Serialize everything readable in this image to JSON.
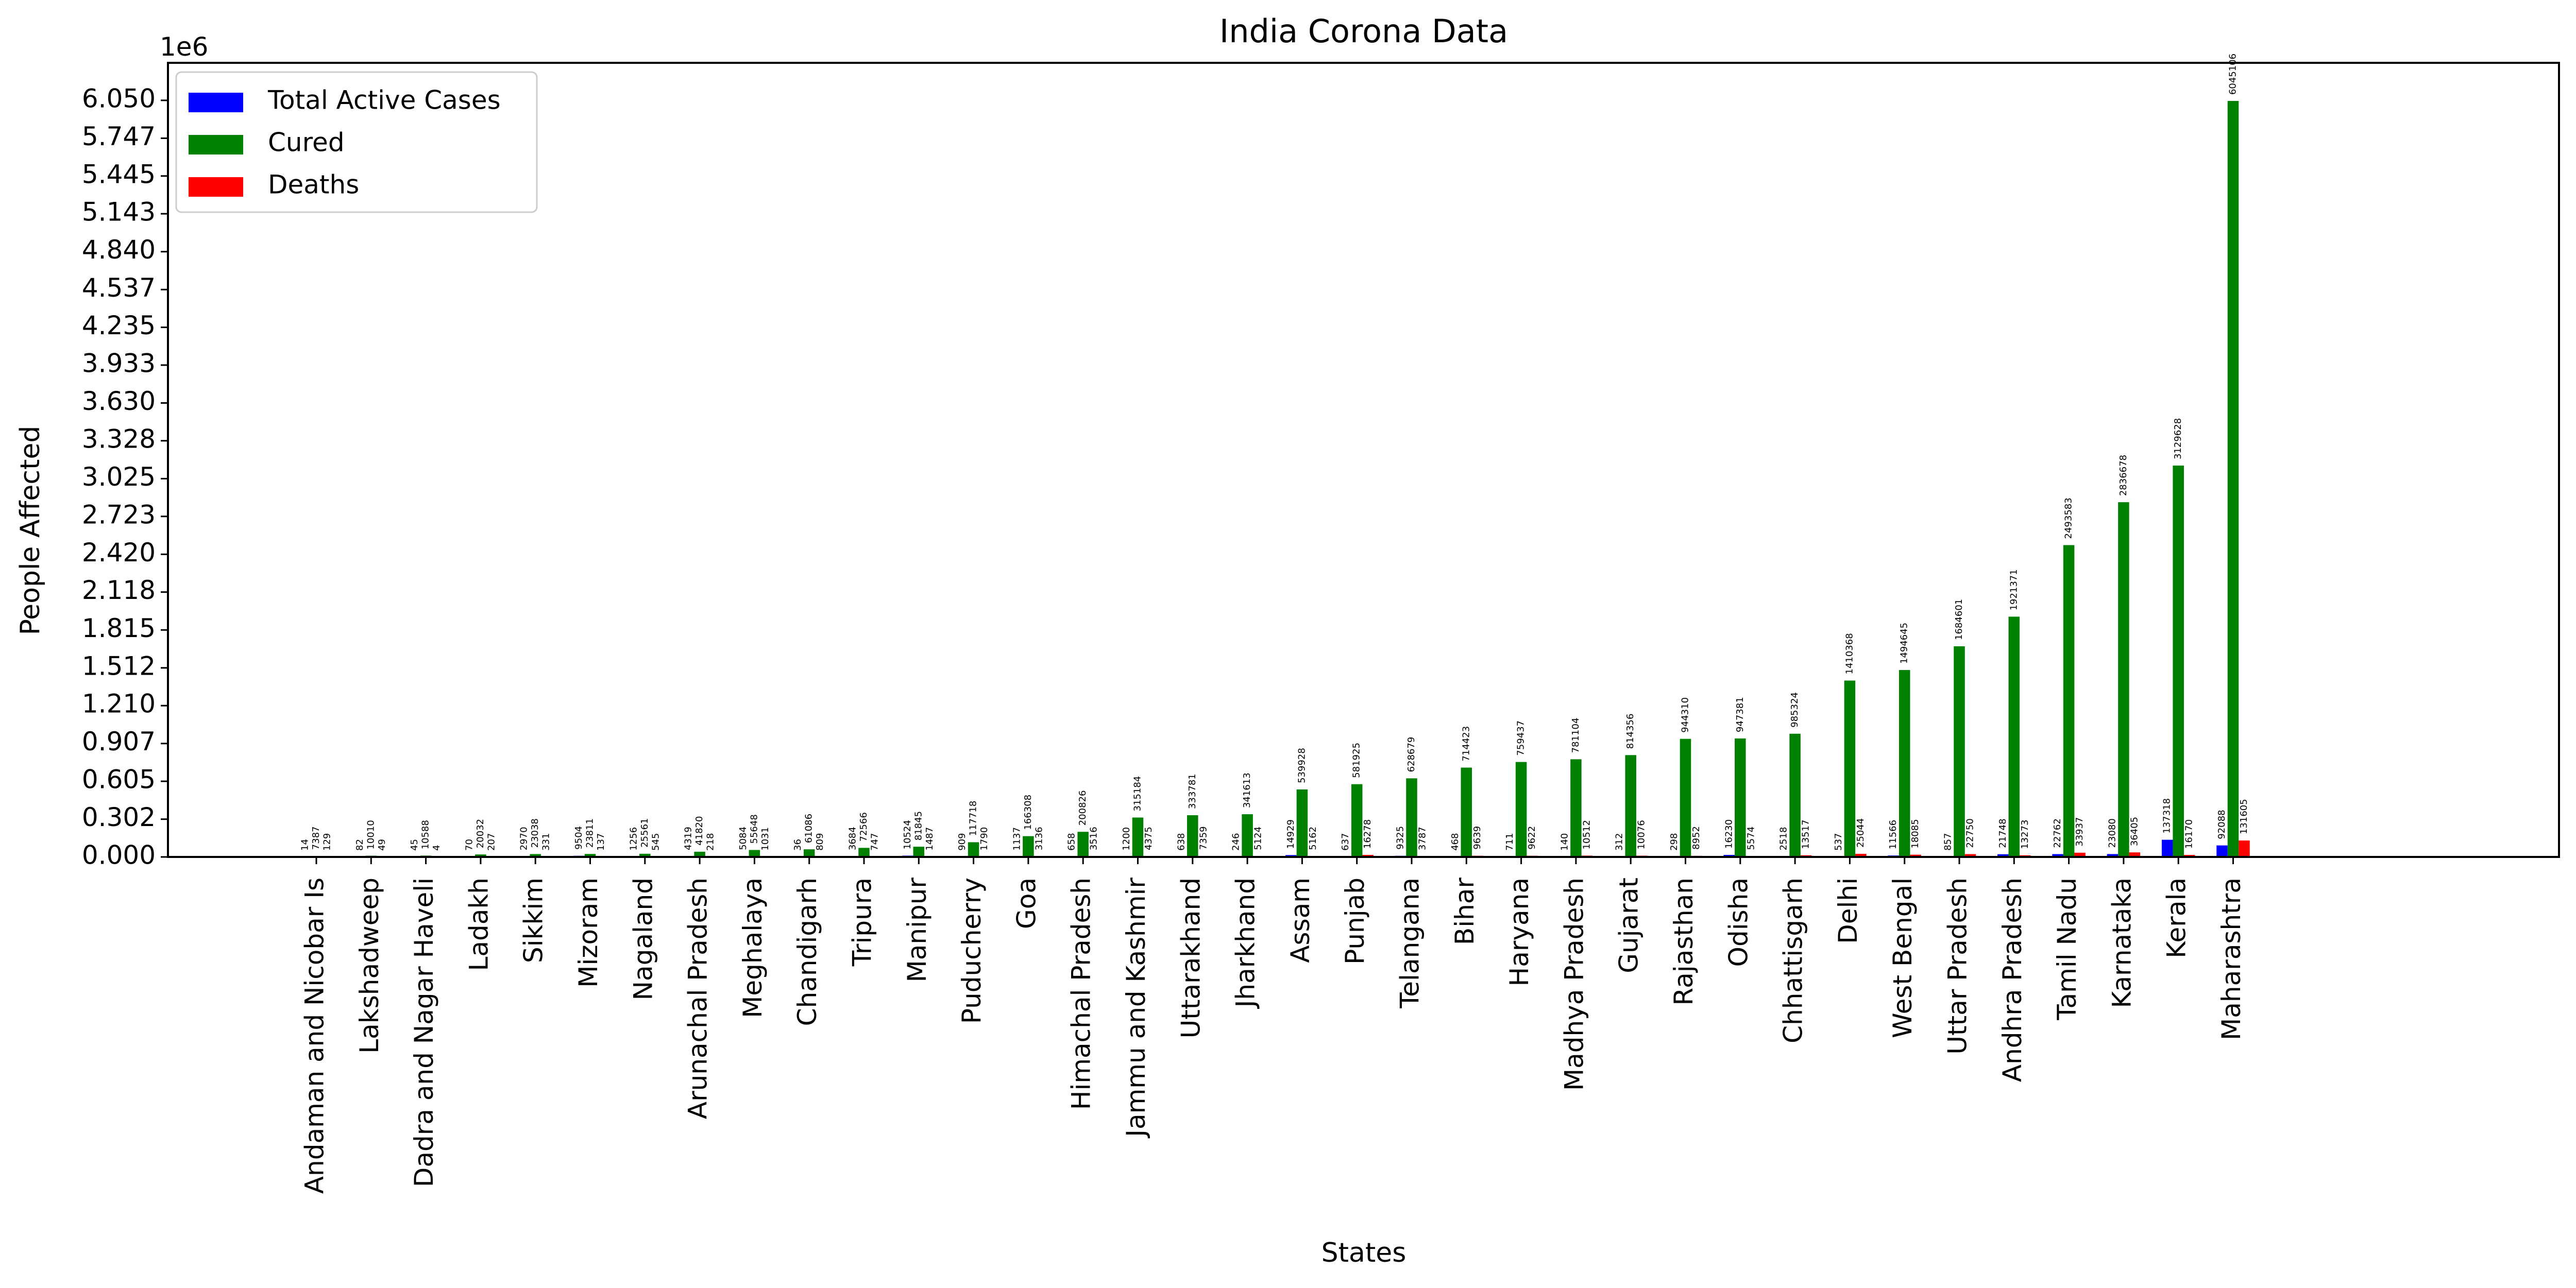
{
  "chart_data": {
    "type": "bar",
    "title": "India Corona Data",
    "xlabel": "States",
    "ylabel": "People Affected",
    "y_offset_label": "1e6",
    "ylim": [
      0,
      6.35
    ],
    "yticks": [
      0.0,
      0.302,
      0.605,
      0.907,
      1.21,
      1.512,
      1.815,
      2.118,
      2.42,
      2.723,
      3.025,
      3.328,
      3.63,
      3.933,
      4.235,
      4.537,
      4.84,
      5.143,
      5.445,
      5.747,
      6.05
    ],
    "legend_position": "upper-left",
    "grid": false,
    "categories": [
      "Andaman and Nicobar Is",
      "Lakshadweep",
      "Dadra and Nagar Haveli",
      "Ladakh",
      "Sikkim",
      "Mizoram",
      "Nagaland",
      "Arunachal Pradesh",
      "Meghalaya",
      "Chandigarh",
      "Tripura",
      "Manipur",
      "Puducherry",
      "Goa",
      "Himachal Pradesh",
      "Jammu and Kashmir",
      "Uttarakhand",
      "Jharkhand",
      "Assam",
      "Punjab",
      "Telangana",
      "Bihar",
      "Haryana",
      "Madhya Pradesh",
      "Gujarat",
      "Rajasthan",
      "Odisha",
      "Chhattisgarh",
      "Delhi",
      "West Bengal",
      "Uttar Pradesh",
      "Andhra Pradesh",
      "Tamil Nadu",
      "Karnataka",
      "Kerala",
      "Maharashtra"
    ],
    "series": [
      {
        "name": "Total Active Cases",
        "color": "#0000ff",
        "values": [
          14,
          82,
          45,
          70,
          2970,
          9504,
          1256,
          4319,
          5084,
          36,
          3684,
          10524,
          909,
          1137,
          658,
          1200,
          638,
          246,
          14929,
          637,
          9325,
          468,
          711,
          140,
          312,
          298,
          16230,
          2518,
          537,
          11566,
          857,
          21748,
          22762,
          23080,
          137318,
          92088
        ]
      },
      {
        "name": "Cured",
        "color": "#008000",
        "values": [
          7387,
          10010,
          10588,
          20032,
          23038,
          23811,
          25561,
          41820,
          55648,
          61086,
          72566,
          81845,
          117718,
          166308,
          200826,
          315184,
          333781,
          341613,
          539928,
          581925,
          628679,
          714423,
          759437,
          781104,
          814356,
          944310,
          947381,
          985324,
          1410368,
          1494645,
          1684601,
          1921371,
          2493583,
          2836678,
          3129628,
          6045106
        ]
      },
      {
        "name": "Deaths",
        "color": "#ff0000",
        "values": [
          129,
          49,
          4,
          207,
          331,
          137,
          545,
          218,
          1031,
          809,
          747,
          1487,
          1790,
          3136,
          3516,
          4375,
          7359,
          5124,
          5162,
          16278,
          3787,
          9639,
          9622,
          10512,
          10076,
          8952,
          5574,
          13517,
          25044,
          18085,
          22750,
          13273,
          33937,
          36405,
          16170,
          131605
        ]
      }
    ]
  }
}
